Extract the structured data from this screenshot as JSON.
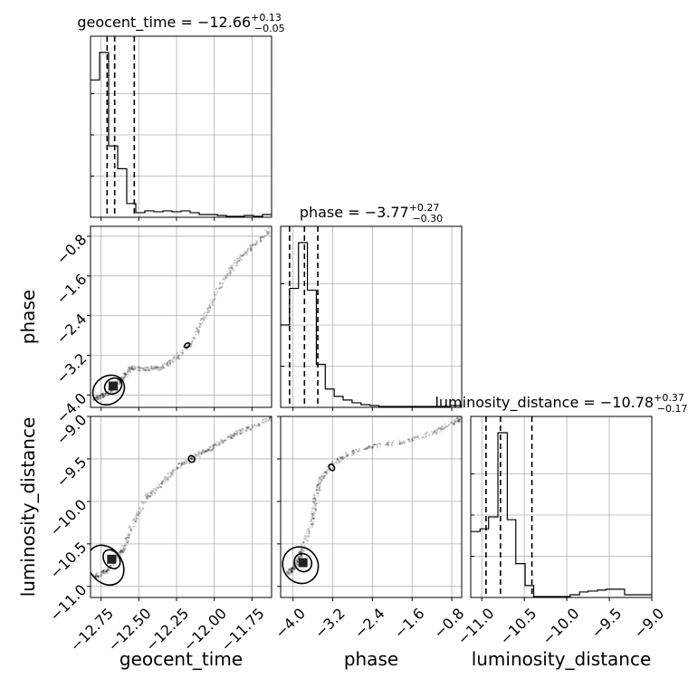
{
  "chart_data": {
    "type": "corner",
    "parameters": [
      "geocent_time",
      "phase",
      "luminosity_distance"
    ],
    "axis_labels": {
      "x": [
        "geocent_time",
        "phase",
        "luminosity_distance"
      ],
      "y": [
        "phase",
        "luminosity_distance"
      ]
    },
    "ranges": {
      "geocent_time": [
        -12.82,
        -11.62
      ],
      "phase": [
        -4.25,
        -0.6
      ],
      "luminosity_distance": [
        -11.13,
        -9.0
      ]
    },
    "ticks": {
      "geocent_time": {
        "values": [
          -12.75,
          -12.5,
          -12.25,
          -12.0,
          -11.75
        ],
        "labels": [
          "−12.75",
          "−12.50",
          "−12.25",
          "−12.00",
          "−11.75"
        ]
      },
      "phase": {
        "values": [
          -4.0,
          -3.2,
          -2.4,
          -1.6,
          -0.8
        ],
        "labels": [
          "−4.0",
          "−3.2",
          "−2.4",
          "−1.6",
          "−0.8"
        ]
      },
      "luminosity_distance": {
        "values": [
          -11.0,
          -10.5,
          -10.0,
          -9.5,
          -9.0
        ],
        "labels": [
          "−11.0",
          "−10.5",
          "−10.0",
          "−9.5",
          "−9.0"
        ]
      }
    },
    "titles": [
      {
        "param": "geocent_time",
        "text": "geocent_time = −12.66",
        "plus": "+0.13",
        "minus": "−0.05",
        "quantiles": [
          -12.71,
          -12.66,
          -12.53
        ]
      },
      {
        "param": "phase",
        "text": "phase = −3.77",
        "plus": "+0.27",
        "minus": "−0.30",
        "quantiles": [
          -4.07,
          -3.77,
          -3.5
        ]
      },
      {
        "param": "luminosity_distance",
        "text": "luminosity_distance = −10.78",
        "plus": "+0.37",
        "minus": "−0.17",
        "quantiles": [
          -10.95,
          -10.78,
          -10.41
        ]
      }
    ],
    "histograms": {
      "geocent_time": {
        "edges": [
          -12.82,
          -12.76,
          -12.7,
          -12.64,
          -12.58,
          -12.52,
          -12.46,
          -12.4,
          -12.34,
          -12.28,
          -12.22,
          -12.16,
          -12.1,
          -12.04,
          -11.98,
          -11.92,
          -11.86,
          -11.8,
          -11.74,
          -11.68,
          -11.62
        ],
        "counts": [
          150,
          180,
          78,
          53,
          15,
          5,
          7,
          6,
          7,
          6,
          7,
          5,
          3,
          3,
          2,
          1,
          1,
          2,
          1,
          3
        ]
      },
      "phase": {
        "edges": [
          -4.25,
          -4.07,
          -3.89,
          -3.71,
          -3.53,
          -3.35,
          -3.17,
          -2.99,
          -2.81,
          -2.63,
          -2.45,
          -2.27,
          -2.09,
          -1.91,
          -1.73,
          -1.55,
          -1.37,
          -1.19,
          -1.01,
          -0.83,
          -0.6
        ],
        "counts": [
          90,
          130,
          180,
          128,
          47,
          20,
          12,
          8,
          5,
          3,
          2,
          1,
          1,
          1,
          1,
          1,
          1,
          1,
          1,
          2
        ]
      },
      "luminosity_distance": {
        "edges": [
          -11.13,
          -11.02,
          -10.92,
          -10.81,
          -10.7,
          -10.6,
          -10.49,
          -10.39,
          -10.28,
          -10.17,
          -10.07,
          -9.96,
          -9.85,
          -9.75,
          -9.64,
          -9.54,
          -9.43,
          -9.32,
          -9.22,
          -9.11,
          -9.0
        ],
        "counts": [
          72,
          75,
          88,
          180,
          85,
          37,
          13,
          1,
          1,
          1,
          1,
          3,
          6,
          7,
          8,
          9,
          9,
          3,
          3,
          3
        ]
      }
    },
    "scatter_trend": {
      "geocent_time_vs_phase": [
        [
          -12.8,
          -4.1
        ],
        [
          -12.7,
          -3.95
        ],
        [
          -12.6,
          -3.65
        ],
        [
          -12.55,
          -3.45
        ],
        [
          -12.45,
          -3.48
        ],
        [
          -12.35,
          -3.45
        ],
        [
          -12.25,
          -3.25
        ],
        [
          -12.15,
          -2.95
        ],
        [
          -12.05,
          -2.35
        ],
        [
          -11.95,
          -1.75
        ],
        [
          -11.85,
          -1.3
        ],
        [
          -11.75,
          -1.0
        ],
        [
          -11.62,
          -0.65
        ]
      ],
      "geocent_time_vs_luminosity_distance": [
        [
          -12.8,
          -10.9
        ],
        [
          -12.7,
          -10.8
        ],
        [
          -12.6,
          -10.55
        ],
        [
          -12.55,
          -10.3
        ],
        [
          -12.45,
          -9.95
        ],
        [
          -12.35,
          -9.8
        ],
        [
          -12.25,
          -9.6
        ],
        [
          -12.15,
          -9.5
        ],
        [
          -12.05,
          -9.4
        ],
        [
          -11.95,
          -9.3
        ],
        [
          -11.85,
          -9.2
        ],
        [
          -11.75,
          -9.12
        ],
        [
          -11.62,
          -9.02
        ]
      ],
      "phase_vs_luminosity_distance": [
        [
          -4.1,
          -10.85
        ],
        [
          -3.95,
          -10.75
        ],
        [
          -3.8,
          -10.55
        ],
        [
          -3.6,
          -10.2
        ],
        [
          -3.55,
          -9.95
        ],
        [
          -3.45,
          -9.75
        ],
        [
          -3.2,
          -9.55
        ],
        [
          -2.9,
          -9.45
        ],
        [
          -2.4,
          -9.35
        ],
        [
          -1.8,
          -9.3
        ],
        [
          -1.2,
          -9.2
        ],
        [
          -0.8,
          -9.08
        ],
        [
          -0.6,
          -9.02
        ]
      ]
    },
    "contours": {
      "geocent_time_vs_phase": [
        {
          "center": [
            -12.7,
            -3.9
          ],
          "rx": 0.11,
          "ry": 0.28
        },
        {
          "center": [
            -12.67,
            -3.82
          ],
          "rx": 0.06,
          "ry": 0.15
        },
        {
          "center": [
            -12.18,
            -3.0
          ],
          "rx": 0.02,
          "ry": 0.04
        }
      ],
      "geocent_time_vs_luminosity_distance": [
        {
          "center": [
            -12.72,
            -10.75
          ],
          "rx": 0.11,
          "ry": 0.25
        },
        {
          "center": [
            -12.68,
            -10.68
          ],
          "rx": 0.05,
          "ry": 0.12
        },
        {
          "center": [
            -12.15,
            -9.5
          ],
          "rx": 0.02,
          "ry": 0.04
        }
      ],
      "phase_vs_luminosity_distance": [
        {
          "center": [
            -3.85,
            -10.75
          ],
          "rx": 0.35,
          "ry": 0.22
        },
        {
          "center": [
            -3.8,
            -10.72
          ],
          "rx": 0.17,
          "ry": 0.11
        },
        {
          "center": [
            -3.22,
            -9.6
          ],
          "rx": 0.05,
          "ry": 0.04
        }
      ]
    },
    "grid": true
  }
}
